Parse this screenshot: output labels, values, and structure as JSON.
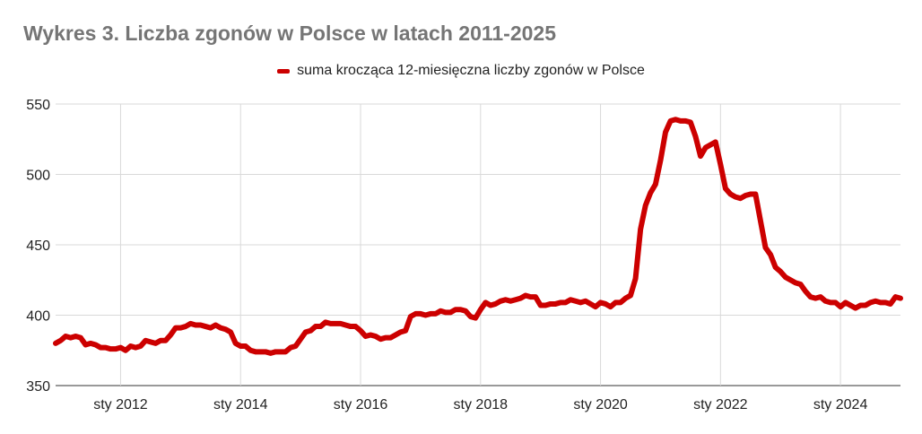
{
  "chart_data": {
    "type": "line",
    "title": "Wykres 3. Liczba zgonów w Polsce w latach 2011-2025",
    "xlabel": "",
    "ylabel": "",
    "ylim": [
      350,
      550
    ],
    "y_ticks": [
      "350",
      "400",
      "450",
      "500",
      "550"
    ],
    "x_ticks": [
      "sty 2012",
      "sty 2014",
      "sty 2016",
      "sty 2018",
      "sty 2020",
      "sty 2022",
      "sty 2024"
    ],
    "grid": true,
    "legend_position": "top",
    "x_start": "2010-12",
    "series": [
      {
        "name": "suma krocząca 12-miesięczna liczby zgonów w Polsce",
        "color": "#cc0000",
        "x_unit": "month",
        "values": [
          380,
          382,
          385,
          384,
          385,
          384,
          379,
          380,
          379,
          377,
          377,
          376,
          376,
          377,
          375,
          378,
          377,
          378,
          382,
          381,
          380,
          382,
          382,
          386,
          391,
          391,
          392,
          394,
          393,
          393,
          392,
          391,
          393,
          391,
          390,
          388,
          380,
          378,
          378,
          375,
          374,
          374,
          374,
          373,
          374,
          374,
          374,
          377,
          378,
          383,
          388,
          389,
          392,
          392,
          395,
          394,
          394,
          394,
          393,
          392,
          392,
          389,
          385,
          386,
          385,
          383,
          384,
          384,
          386,
          388,
          389,
          399,
          401,
          401,
          400,
          401,
          401,
          403,
          402,
          402,
          404,
          404,
          403,
          399,
          398,
          404,
          409,
          407,
          408,
          410,
          411,
          410,
          411,
          412,
          414,
          413,
          413,
          407,
          407,
          408,
          408,
          409,
          409,
          411,
          410,
          409,
          410,
          408,
          406,
          409,
          408,
          406,
          409,
          409,
          412,
          414,
          426,
          461,
          478,
          487,
          493,
          510,
          530,
          538,
          539,
          538,
          538,
          537,
          527,
          513,
          519,
          521,
          523,
          507,
          490,
          486,
          484,
          483,
          485,
          486,
          486,
          467,
          448,
          443,
          434,
          431,
          427,
          425,
          423,
          422,
          417,
          413,
          412,
          413,
          410,
          409,
          409,
          406,
          409,
          407,
          405,
          407,
          407,
          409,
          410,
          409,
          409,
          408,
          413,
          412
        ]
      }
    ]
  }
}
